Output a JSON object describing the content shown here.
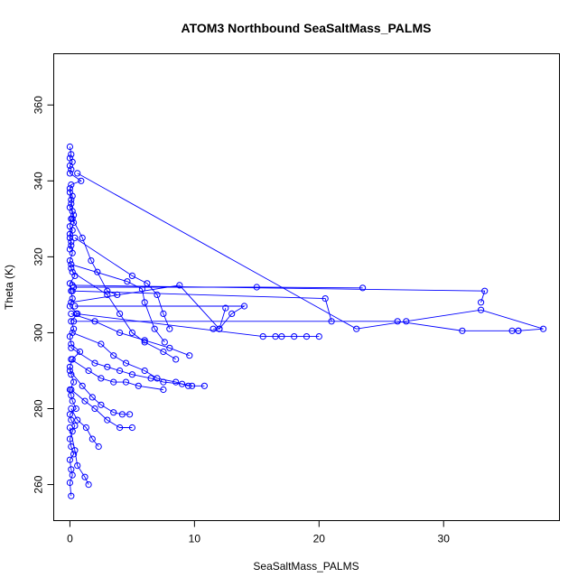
{
  "chart_data": {
    "type": "line",
    "title": "ATOM3 Northbound SeaSaltMass_PALMS",
    "xlabel": "SeaSaltMass_PALMS",
    "ylabel": "Theta (K)",
    "xlim": [
      -1.3,
      39.3
    ],
    "ylim": [
      250.5,
      373.5
    ],
    "x_ticks": [
      0,
      10,
      20,
      30
    ],
    "y_ticks": [
      260,
      280,
      300,
      320,
      340,
      360
    ],
    "grid": false,
    "legend": "none",
    "series_color": "#0000ff",
    "marker": "open-circle",
    "series": [
      {
        "x": [
          0.1,
          0.0,
          0.2,
          0.1,
          0.0,
          0.3,
          0.1,
          0.0,
          0.2,
          0.4,
          0.1,
          0.0,
          0.5,
          0.2,
          0.1,
          0.0,
          0.3,
          0.1,
          0.0,
          0.2,
          0.8,
          0.1,
          0.0,
          0.3,
          0.1,
          0.6,
          0.0,
          0.2,
          0.1,
          0.0,
          0.4,
          0.1,
          0.0,
          0.2,
          0.1,
          0.0,
          0.3,
          0.2,
          0.1,
          0.0
        ],
        "y": [
          257,
          260.5,
          262.5,
          264,
          266.5,
          268,
          270,
          272,
          274,
          275.5,
          277,
          278.5,
          280,
          282,
          283.5,
          285,
          287,
          289,
          291,
          293,
          295,
          297,
          299,
          301,
          303,
          305,
          307,
          309,
          311,
          313,
          315,
          317,
          319,
          321,
          323,
          326,
          329,
          332,
          335,
          338
        ]
      },
      {
        "x": [
          0.0,
          0.1,
          0.0,
          0.2,
          0.0,
          0.1,
          0.0,
          0.9,
          0.1,
          0.0,
          0.2,
          0.1,
          0.0,
          0.3,
          0.1,
          0.0,
          0.2,
          0.0,
          0.1,
          0.0
        ],
        "y": [
          349,
          347,
          346,
          345,
          344,
          343,
          342,
          340,
          339,
          337,
          336,
          334,
          333,
          331,
          330,
          328,
          327,
          325,
          324,
          322
        ]
      },
      {
        "x": [
          0.6,
          23.0,
          27.0,
          33.0,
          38.0,
          36.0
        ],
        "y": [
          342,
          301,
          303,
          306,
          301,
          300.5
        ]
      },
      {
        "x": [
          0.2,
          33.3,
          33.0
        ],
        "y": [
          312.5,
          311,
          308
        ]
      },
      {
        "x": [
          0.3,
          15.0,
          23.5
        ],
        "y": [
          312,
          312,
          311.8
        ]
      },
      {
        "x": [
          0.2,
          20.5,
          21.0
        ],
        "y": [
          311,
          309,
          303
        ]
      },
      {
        "x": [
          0.1,
          8.8,
          12.0,
          12.5
        ],
        "y": [
          308,
          312.5,
          301,
          306.5
        ]
      },
      {
        "x": [
          0.4,
          14.0,
          13.0,
          12.0,
          11.5
        ],
        "y": [
          307,
          307,
          305,
          301,
          301
        ]
      },
      {
        "x": [
          0.5,
          15.5,
          16.5,
          17.0,
          18.0,
          19.0,
          20.0
        ],
        "y": [
          305,
          299,
          299,
          299,
          299,
          299,
          299
        ]
      },
      {
        "x": [
          0.3,
          26.3,
          31.5,
          35.5,
          36.0
        ],
        "y": [
          303,
          303,
          300.5,
          300.5,
          300.5
        ]
      },
      {
        "x": [
          0.4,
          5.0,
          6.2,
          7.0,
          7.5,
          8.0
        ],
        "y": [
          325,
          315,
          313,
          310,
          305,
          301
        ]
      },
      {
        "x": [
          0.1,
          4.6,
          5.8,
          6.0,
          6.8,
          7.6
        ],
        "y": [
          318,
          313.5,
          311.5,
          308,
          301,
          297.5
        ]
      },
      {
        "x": [
          0.2,
          3.0,
          4.0,
          5.0,
          6.0,
          7.5,
          8.5
        ],
        "y": [
          316,
          310,
          305,
          300,
          297.5,
          295,
          293
        ]
      },
      {
        "x": [
          0.2,
          2.5,
          3.5,
          4.5,
          6.0,
          7.0,
          8.5,
          9.5
        ],
        "y": [
          300,
          297,
          294,
          292,
          290,
          288,
          287,
          286
        ]
      },
      {
        "x": [
          0.1,
          2.0,
          3.0,
          4.0,
          5.0,
          6.5,
          7.5,
          9.0,
          9.8,
          10.8
        ],
        "y": [
          296,
          292,
          291,
          290,
          289,
          288,
          287,
          286.5,
          286,
          286
        ]
      },
      {
        "x": [
          0.1,
          1.5,
          2.5,
          3.5,
          4.5,
          5.5,
          7.5
        ],
        "y": [
          293,
          290,
          288,
          287,
          287,
          286,
          285
        ]
      },
      {
        "x": [
          0.0,
          1.0,
          1.8,
          2.5,
          3.5,
          4.2,
          4.8
        ],
        "y": [
          290,
          286,
          283,
          281,
          279,
          278.5,
          278.5
        ]
      },
      {
        "x": [
          0.1,
          1.2,
          2.0,
          3.0,
          4.0,
          5.0
        ],
        "y": [
          285,
          282,
          280,
          277,
          275,
          275
        ]
      },
      {
        "x": [
          0.1,
          0.6,
          1.3,
          1.8,
          2.3
        ],
        "y": [
          280,
          277,
          275,
          272,
          270
        ]
      },
      {
        "x": [
          0.0,
          0.4,
          0.6,
          1.2,
          1.5
        ],
        "y": [
          275,
          269,
          265,
          262,
          260
        ]
      },
      {
        "x": [
          0.2,
          1.0,
          1.7,
          2.2,
          3.0,
          3.8
        ],
        "y": [
          330,
          325,
          319,
          316,
          311,
          310
        ]
      },
      {
        "x": [
          0.1,
          2.0,
          4.0,
          6.0,
          8.0,
          9.6
        ],
        "y": [
          305,
          303,
          300,
          298,
          296,
          294
        ]
      }
    ]
  }
}
